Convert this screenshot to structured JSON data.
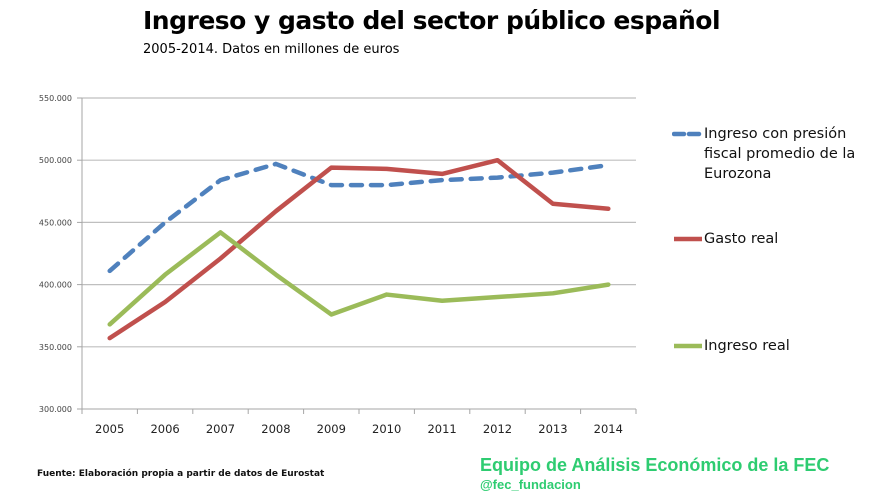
{
  "header": {
    "title": "Ingreso y gasto del sector público español",
    "subtitle": "2005-2014. Datos en millones de euros"
  },
  "footer": {
    "source": "Fuente: Elaboración propia a partir de datos de Eurostat",
    "team": "Equipo de Análisis Económico de la FEC",
    "handle": "@fec_fundacion",
    "brand_color": "#2ecc71"
  },
  "chart_data": {
    "type": "line",
    "title": "Ingreso y gasto del sector público español",
    "subtitle": "2005-2014. Datos en millones de euros",
    "xlabel": "",
    "ylabel": "",
    "categories": [
      "2005",
      "2006",
      "2007",
      "2008",
      "2009",
      "2010",
      "2011",
      "2012",
      "2013",
      "2014"
    ],
    "ylim": [
      300000,
      550000
    ],
    "yticks": [
      300000,
      350000,
      400000,
      450000,
      500000,
      550000
    ],
    "ytick_labels": [
      "300.000",
      "350.000",
      "400.000",
      "450.000",
      "500.000",
      "550.000"
    ],
    "grid": true,
    "legend_position": "right",
    "series": [
      {
        "name": "Ingreso con presión fiscal promedio de la Eurozona",
        "color": "#4f81bd",
        "style": "dashed",
        "values": [
          411000,
          450000,
          484000,
          497000,
          480000,
          480000,
          484000,
          486000,
          490000,
          496000
        ]
      },
      {
        "name": "Gasto real",
        "color": "#c0504d",
        "style": "solid",
        "values": [
          357000,
          386000,
          421000,
          459000,
          494000,
          493000,
          489000,
          500000,
          465000,
          461000
        ]
      },
      {
        "name": "Ingreso real",
        "color": "#9bbb59",
        "style": "solid",
        "values": [
          368000,
          408000,
          442000,
          408000,
          376000,
          392000,
          387000,
          390000,
          393000,
          400000
        ]
      }
    ]
  }
}
